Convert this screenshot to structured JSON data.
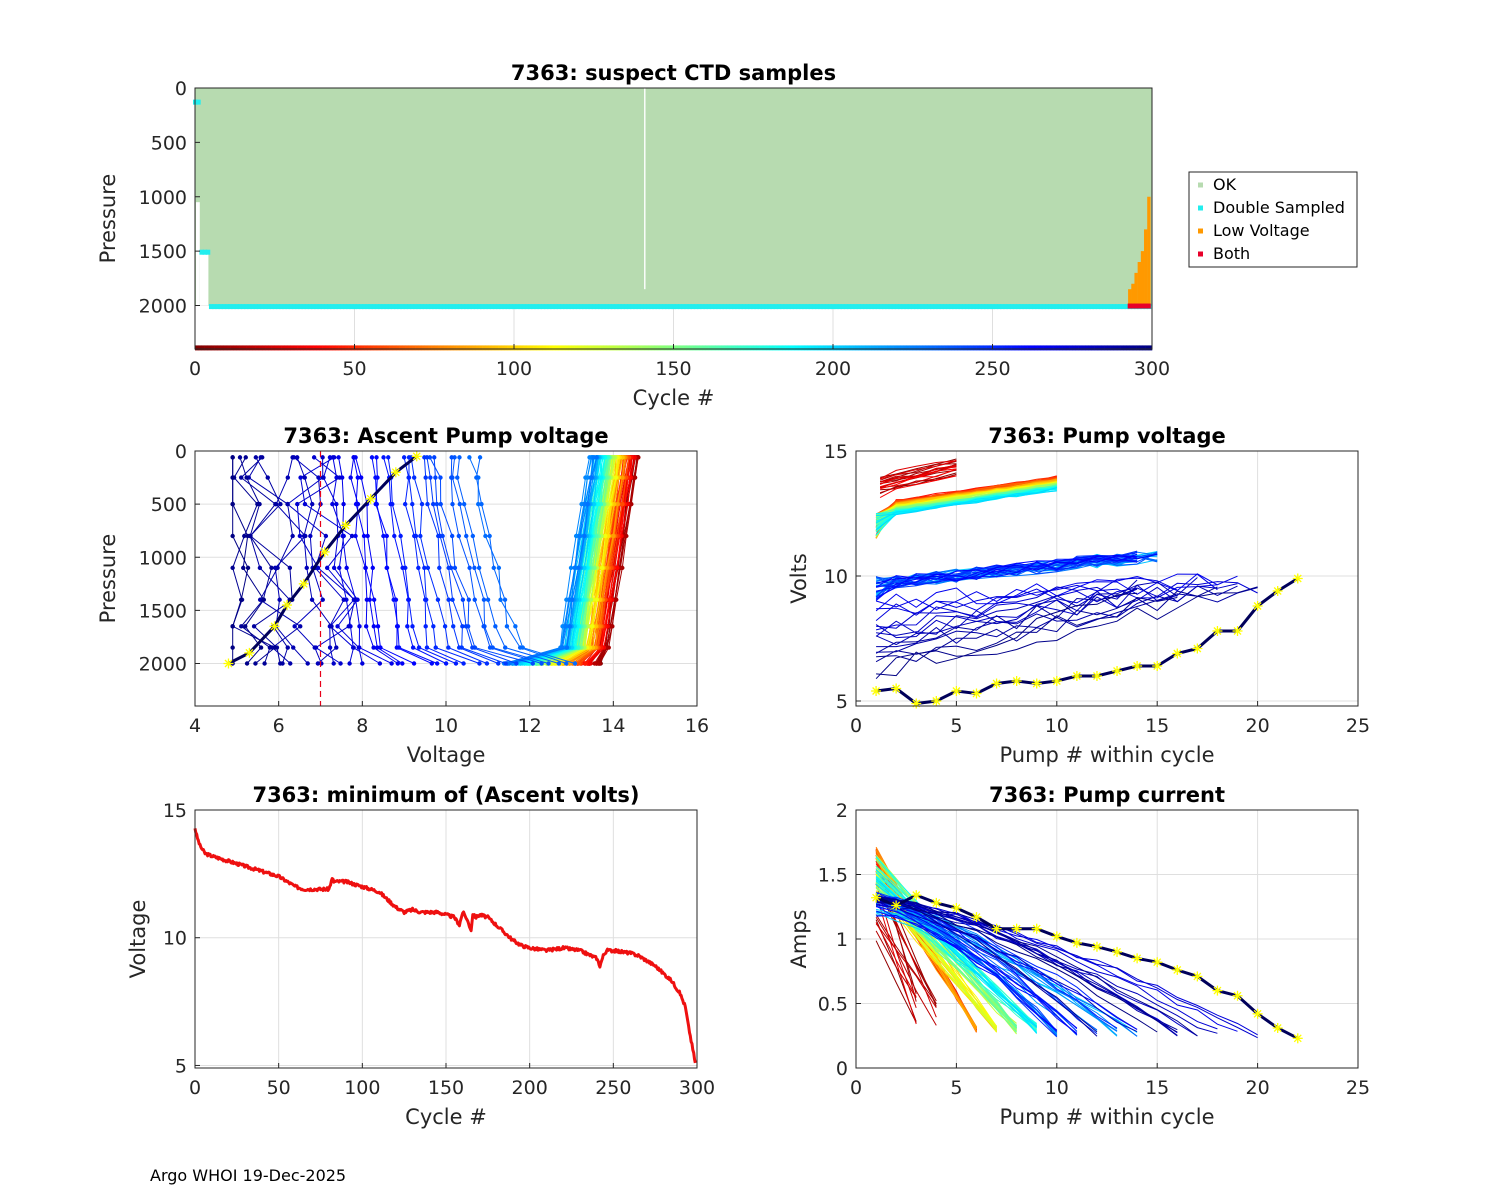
{
  "footer": {
    "credit": "Argo WHOI 19-Dec-2025"
  },
  "chart_data": [
    {
      "id": "suspect",
      "type": "scatter",
      "title": "7363: suspect CTD samples",
      "xlabel": "Cycle #",
      "ylabel": "Pressure",
      "xlim": [
        0,
        300
      ],
      "ylim": [
        0,
        2400
      ],
      "yreverse": true,
      "xticks": [
        0,
        50,
        100,
        150,
        200,
        250,
        300
      ],
      "yticks": [
        0,
        500,
        1000,
        1500,
        2000
      ],
      "legend": {
        "placement": "outside-right",
        "entries": [
          {
            "label": "OK",
            "color": "#b7dbb0"
          },
          {
            "label": "Double Sampled",
            "color": "#22eeee"
          },
          {
            "label": "Low Voltage",
            "color": "#ff9900"
          },
          {
            "label": "Both",
            "color": "#e8002a"
          }
        ]
      },
      "ok_region": {
        "cycle_range": [
          0,
          300
        ],
        "pressure_range": [
          0,
          2000
        ],
        "gap_cycles": [
          141
        ]
      },
      "double_sampled": {
        "pressure_by_cycle": [
          {
            "cycles": [
              0,
              1
            ],
            "pressure": 130
          },
          {
            "cycles": [
              2,
              4
            ],
            "pressure": 1510
          },
          {
            "cycles": [
              5,
              299
            ],
            "pressure": 2010
          }
        ]
      },
      "low_voltage": {
        "cycles": [
          293,
          294,
          295,
          296,
          297,
          298,
          299
        ],
        "top_pressure": [
          1850,
          1800,
          1700,
          1600,
          1500,
          1300,
          1000
        ]
      },
      "both": {
        "cycles": [
          293,
          299
        ],
        "pressure": 2005
      },
      "cycle_marker_row": {
        "pressure": 2390,
        "colormap": "jet-reversed"
      }
    },
    {
      "id": "ascent",
      "type": "line",
      "title": "7363: Ascent Pump voltage",
      "xlabel": "Voltage",
      "ylabel": "Pressure",
      "xlim": [
        4,
        16
      ],
      "ylim": [
        0,
        2400
      ],
      "yreverse": true,
      "xticks": [
        4,
        6,
        8,
        10,
        12,
        14,
        16
      ],
      "yticks": [
        0,
        500,
        1000,
        1500,
        2000
      ],
      "threshold_voltage": 7,
      "series_summary": {
        "colormap": "jet-reversed",
        "early_cycles_voltage_range": [
          13.8,
          14.6
        ],
        "late_cycles_voltage_range": [
          4.8,
          11
        ]
      },
      "last_cycle": {
        "voltage": [
          4.8,
          5.3,
          5.9,
          6.2,
          6.6,
          7.1,
          7.6,
          8.2,
          8.8,
          9.3
        ],
        "pressure": [
          2000,
          1900,
          1650,
          1450,
          1250,
          950,
          700,
          450,
          200,
          50
        ]
      }
    },
    {
      "id": "pumpvolt",
      "type": "line",
      "title": "7363: Pump voltage",
      "xlabel": "Pump # within cycle",
      "ylabel": "Volts",
      "xlim": [
        0,
        25
      ],
      "ylim": [
        4.8,
        15
      ],
      "xticks": [
        0,
        5,
        10,
        15,
        20,
        25
      ],
      "yticks": [
        5,
        10,
        15
      ],
      "last_cycle": {
        "pump": [
          1,
          2,
          3,
          4,
          5,
          6,
          7,
          8,
          9,
          10,
          11,
          12,
          13,
          14,
          15,
          16,
          17,
          18,
          19,
          20,
          21,
          22
        ],
        "volts": [
          5.4,
          5.5,
          4.9,
          5.0,
          5.4,
          5.3,
          5.7,
          5.8,
          5.7,
          5.8,
          6.0,
          6.0,
          6.2,
          6.4,
          6.4,
          6.9,
          7.1,
          7.8,
          7.8,
          8.8,
          9.4,
          9.9
        ]
      },
      "series_summary": {
        "early_cycles_volts_range": [
          12.5,
          14.5
        ],
        "mid_cycles_volts_range": [
          9,
          11.5
        ],
        "max_pumps_per_cycle": 22
      }
    },
    {
      "id": "minvolt",
      "type": "line",
      "title": "7363: minimum of (Ascent volts)",
      "xlabel": "Cycle #",
      "ylabel": "Voltage",
      "xlim": [
        0,
        300
      ],
      "ylim": [
        4.9,
        15
      ],
      "xticks": [
        0,
        50,
        100,
        150,
        200,
        250,
        300
      ],
      "yticks": [
        5,
        10,
        15
      ],
      "x": [
        0,
        1,
        3,
        6,
        10,
        20,
        30,
        40,
        50,
        55,
        60,
        65,
        70,
        75,
        80,
        82,
        83,
        85,
        90,
        100,
        110,
        115,
        120,
        125,
        130,
        135,
        140,
        145,
        150,
        155,
        158,
        160,
        162,
        165,
        166,
        168,
        170,
        175,
        180,
        185,
        190,
        195,
        200,
        210,
        220,
        230,
        240,
        242,
        244,
        246,
        250,
        260,
        265,
        270,
        275,
        280,
        285,
        290,
        293,
        295,
        297,
        299
      ],
      "values": [
        14.3,
        14.0,
        13.6,
        13.3,
        13.2,
        13.0,
        12.8,
        12.6,
        12.4,
        12.2,
        12.0,
        11.9,
        11.9,
        11.9,
        11.9,
        12.3,
        12.2,
        12.2,
        12.2,
        12.0,
        11.8,
        11.5,
        11.2,
        11.0,
        11.1,
        11.0,
        11.0,
        11.0,
        10.9,
        10.8,
        10.5,
        11.0,
        10.8,
        10.3,
        10.9,
        10.8,
        10.9,
        10.8,
        10.5,
        10.2,
        9.9,
        9.7,
        9.6,
        9.5,
        9.6,
        9.5,
        9.2,
        8.9,
        9.3,
        9.5,
        9.5,
        9.4,
        9.3,
        9.1,
        8.9,
        8.6,
        8.3,
        7.8,
        7.3,
        6.5,
        5.8,
        5.1
      ],
      "color": "#ee1010"
    },
    {
      "id": "current",
      "type": "line",
      "title": "7363: Pump current",
      "xlabel": "Pump # within cycle",
      "ylabel": "Amps",
      "xlim": [
        0,
        25
      ],
      "ylim": [
        0,
        2
      ],
      "xticks": [
        0,
        5,
        10,
        15,
        20,
        25
      ],
      "yticks": [
        0,
        0.5,
        1,
        1.5,
        2
      ],
      "last_cycle": {
        "pump": [
          1,
          2,
          3,
          4,
          5,
          6,
          7,
          8,
          9,
          10,
          11,
          12,
          13,
          14,
          15,
          16,
          17,
          18,
          19,
          20,
          21,
          22
        ],
        "amps": [
          1.32,
          1.26,
          1.34,
          1.28,
          1.24,
          1.17,
          1.08,
          1.08,
          1.08,
          1.02,
          0.97,
          0.94,
          0.9,
          0.85,
          0.82,
          0.76,
          0.71,
          0.6,
          0.56,
          0.42,
          0.31,
          0.23
        ]
      },
      "series_summary": {
        "early_cycles_amps_range": [
          0.3,
          1.7
        ],
        "max_pumps_per_cycle": 22
      }
    }
  ]
}
